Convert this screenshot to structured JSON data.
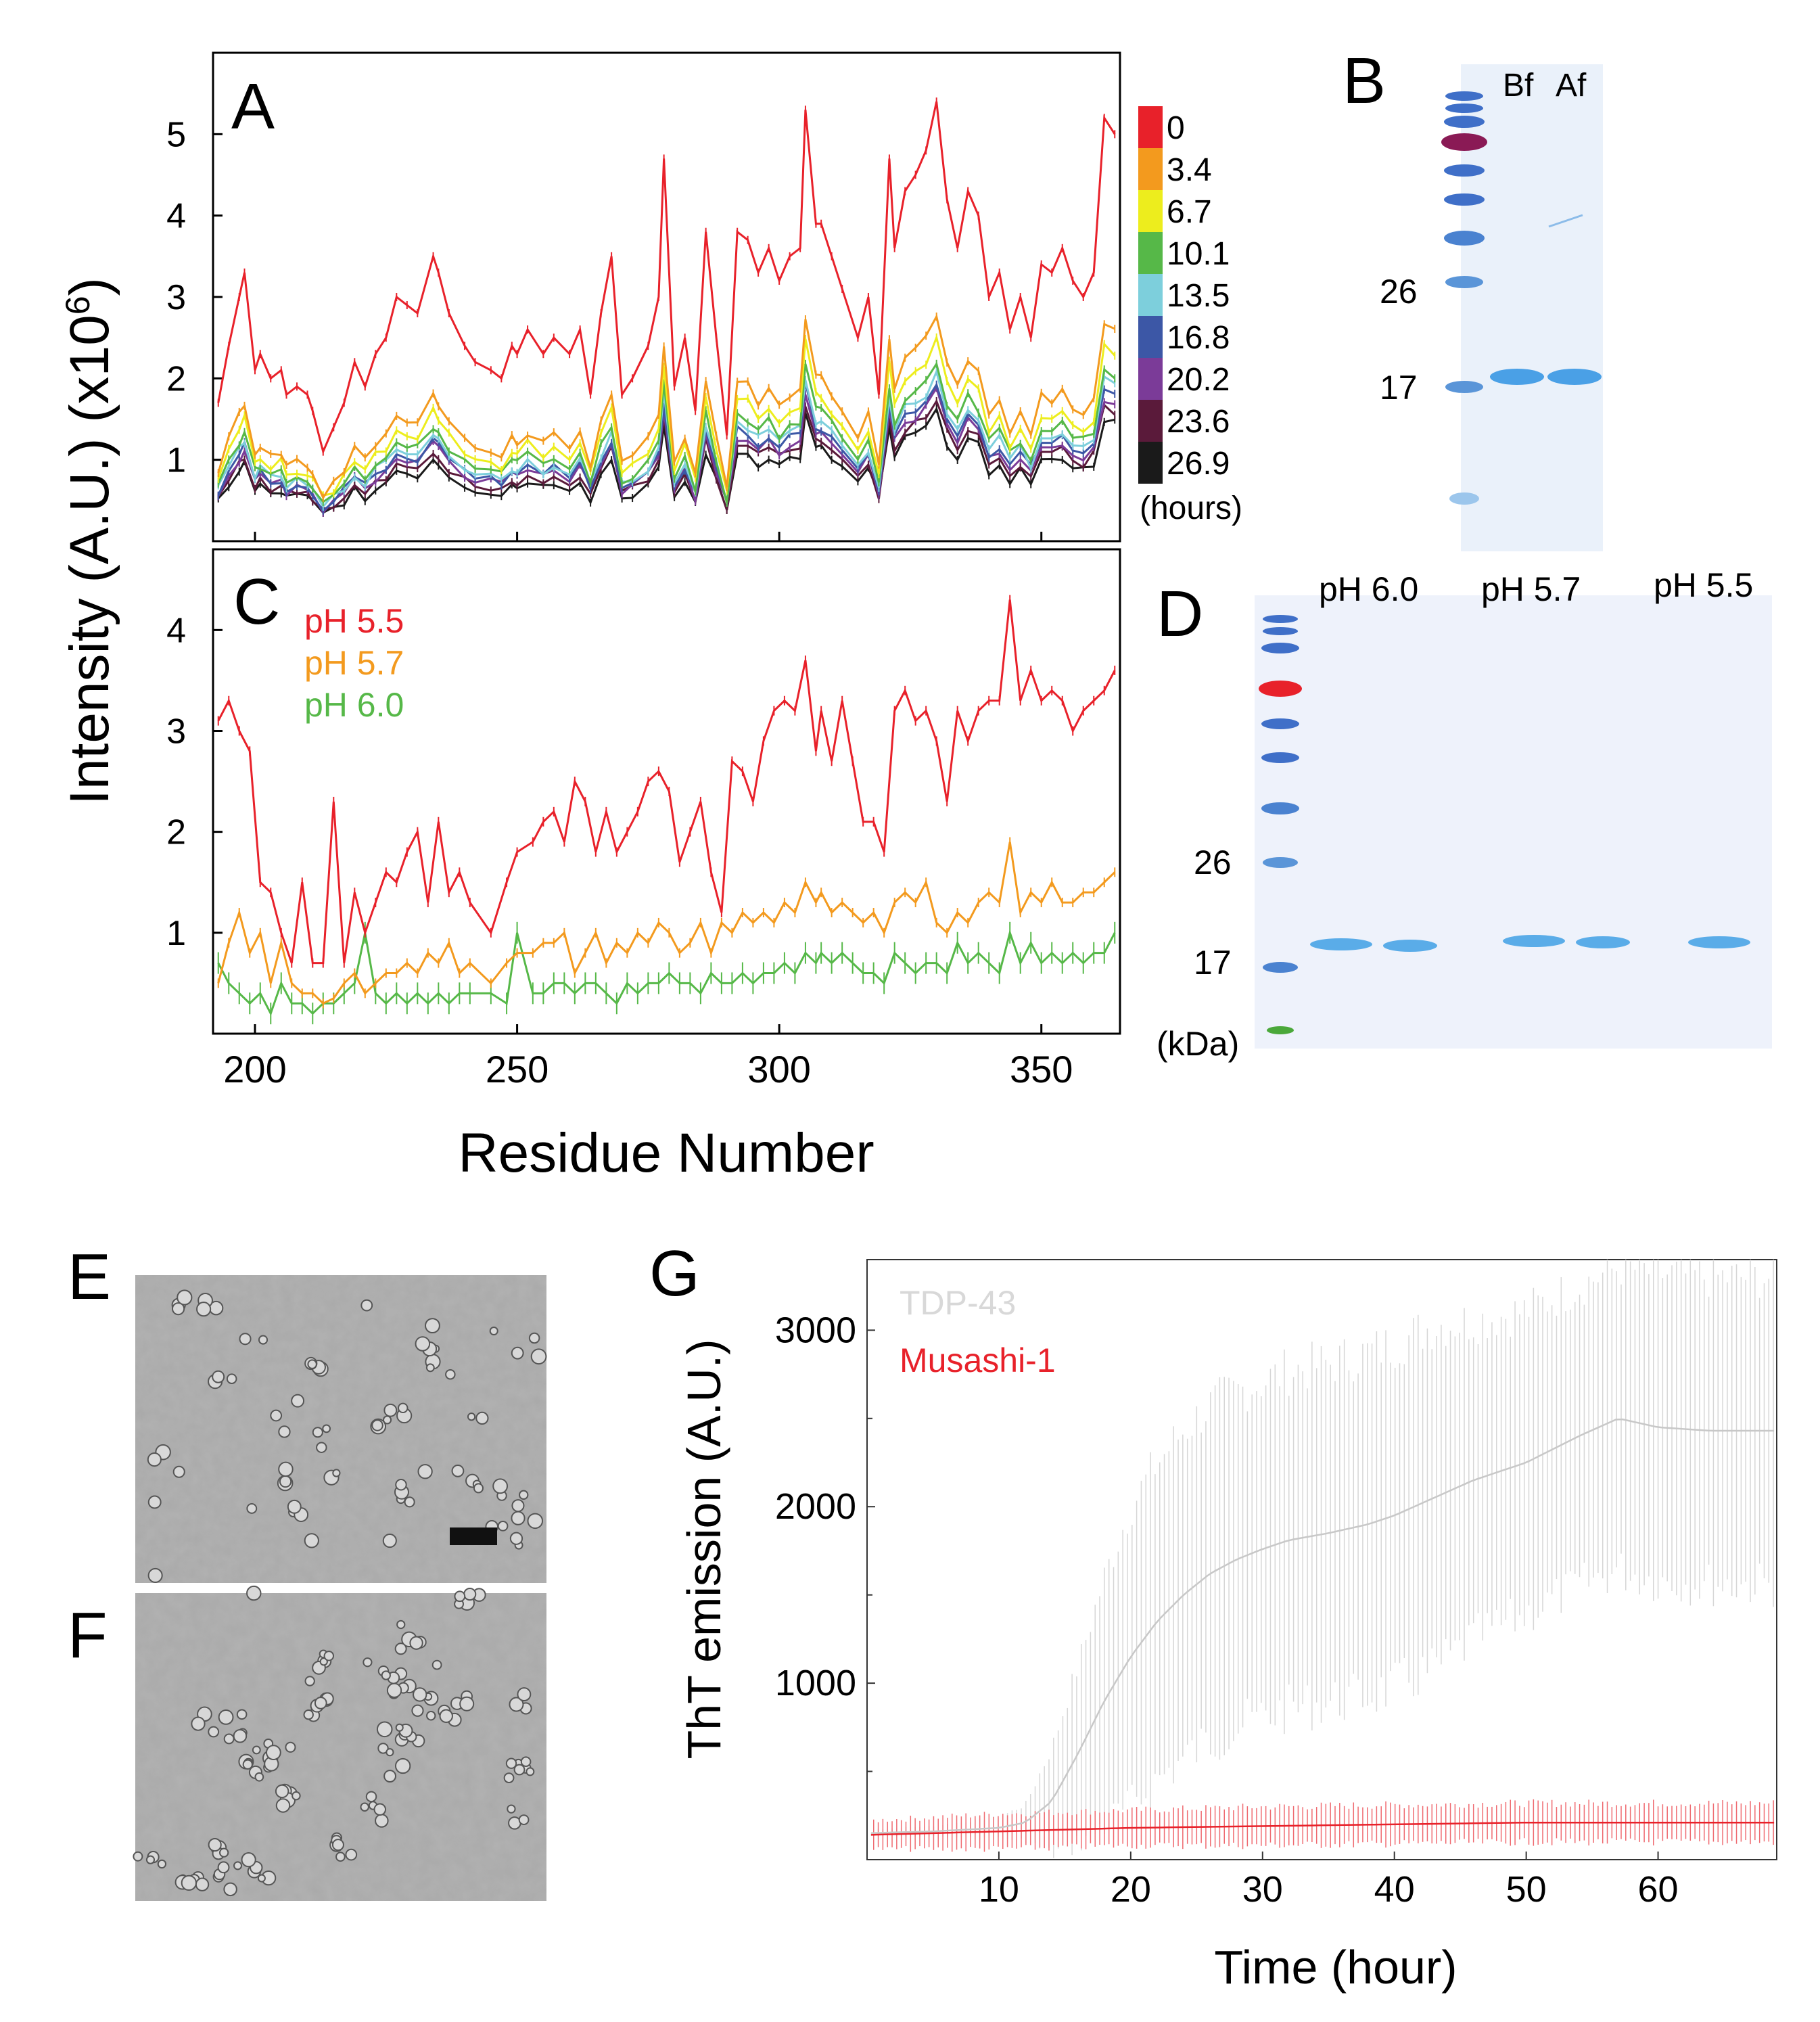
{
  "panel_labels": {
    "a": "A",
    "b": "B",
    "c": "C",
    "d": "D",
    "e": "E",
    "f": "F",
    "g": "G"
  },
  "colors": {
    "legend": [
      "#e8212a",
      "#f39a1e",
      "#eded1d",
      "#56b848",
      "#7dcfdc",
      "#3c57a6",
      "#7b3b98",
      "#5a1a3a",
      "#1a1a1a"
    ],
    "ph55": "#e8212a",
    "ph57": "#f39a1e",
    "ph60": "#56b848",
    "tdp43": "#c8c8c8",
    "musashi": "#e8212a",
    "gel_bg": "#eaf1fa",
    "band": "#4aa0e6"
  },
  "chart_data": [
    {
      "id": "A",
      "type": "line",
      "title": "",
      "ylabel_main": "Intensity (A.U.) (x10",
      "ylabel_sup": "6",
      "ylabel_end": ")",
      "xlim": [
        192,
        365
      ],
      "ylim": [
        0,
        6
      ],
      "yticks": [
        1,
        2,
        3,
        4,
        5
      ],
      "xticks": [
        200,
        250,
        300,
        350
      ],
      "legend": {
        "labels": [
          "0",
          "3.4",
          "6.7",
          "10.1",
          "13.5",
          "16.8",
          "20.2",
          "23.6",
          "26.9"
        ],
        "unit": "(hours)"
      },
      "series": [
        {
          "name": "0",
          "scale": 1.0
        },
        {
          "name": "3.4",
          "scale": 0.52
        },
        {
          "name": "6.7",
          "scale": 0.46
        },
        {
          "name": "10.1",
          "scale": 0.41
        },
        {
          "name": "13.5",
          "scale": 0.38
        },
        {
          "name": "16.8",
          "scale": 0.36
        },
        {
          "name": "20.2",
          "scale": 0.34
        },
        {
          "name": "23.6",
          "scale": 0.32
        },
        {
          "name": "26.9",
          "scale": 0.29
        }
      ],
      "x": [
        193,
        195,
        197,
        198,
        200,
        201,
        203,
        205,
        206,
        208,
        210,
        211,
        213,
        215,
        217,
        219,
        221,
        223,
        225,
        227,
        229,
        231,
        234,
        235,
        237,
        240,
        242,
        245,
        247,
        249,
        250,
        252,
        255,
        257,
        260,
        262,
        264,
        266,
        268,
        270,
        272,
        275,
        277,
        278,
        280,
        282,
        284,
        286,
        288,
        290,
        292,
        294,
        296,
        298,
        300,
        302,
        304,
        305,
        307,
        308,
        310,
        312,
        315,
        317,
        319,
        321,
        322,
        324,
        326,
        328,
        330,
        332,
        334,
        336,
        338,
        340,
        342,
        344,
        346,
        348,
        350,
        352,
        354,
        356,
        358,
        360,
        362,
        364
      ],
      "y": [
        1.7,
        2.4,
        3.0,
        3.3,
        2.1,
        2.3,
        2.0,
        2.1,
        1.8,
        1.9,
        1.8,
        1.6,
        1.1,
        1.4,
        1.7,
        2.2,
        1.9,
        2.3,
        2.5,
        3.0,
        2.9,
        2.8,
        3.5,
        3.3,
        2.8,
        2.4,
        2.2,
        2.1,
        2.0,
        2.4,
        2.3,
        2.6,
        2.3,
        2.5,
        2.3,
        2.6,
        1.8,
        2.8,
        3.5,
        1.8,
        2.0,
        2.4,
        3.0,
        4.7,
        1.9,
        2.5,
        1.6,
        3.8,
        2.5,
        1.3,
        3.8,
        3.7,
        3.3,
        3.6,
        3.2,
        3.5,
        3.6,
        5.3,
        3.9,
        3.9,
        3.5,
        3.1,
        2.5,
        3.0,
        1.8,
        4.7,
        3.6,
        4.3,
        4.5,
        4.8,
        5.4,
        4.2,
        3.6,
        4.3,
        4.0,
        3.0,
        3.3,
        2.6,
        3.0,
        2.5,
        3.4,
        3.3,
        3.6,
        3.2,
        3.0,
        3.3,
        5.2,
        5.0
      ]
    },
    {
      "id": "C",
      "type": "line",
      "xlim": [
        192,
        365
      ],
      "ylim": [
        0,
        4.8
      ],
      "yticks": [
        1,
        2,
        3,
        4
      ],
      "xticks": [
        200,
        250,
        300,
        350
      ],
      "xlabel": "Residue Number",
      "xticklabels": [
        "200",
        "250",
        "300",
        "350"
      ],
      "legend_labels": [
        "pH 5.5",
        "pH 5.7",
        "pH 6.0"
      ],
      "x": [
        193,
        195,
        197,
        199,
        201,
        203,
        205,
        207,
        209,
        211,
        213,
        215,
        217,
        219,
        221,
        223,
        225,
        227,
        229,
        231,
        233,
        235,
        237,
        239,
        241,
        245,
        248,
        250,
        253,
        255,
        257,
        259,
        261,
        263,
        265,
        267,
        269,
        271,
        273,
        275,
        277,
        279,
        281,
        283,
        285,
        287,
        289,
        291,
        293,
        295,
        297,
        299,
        301,
        303,
        305,
        307,
        308,
        310,
        312,
        314,
        316,
        318,
        320,
        322,
        324,
        326,
        328,
        330,
        332,
        334,
        336,
        338,
        340,
        342,
        344,
        346,
        348,
        350,
        352,
        354,
        356,
        358,
        360,
        362,
        364
      ],
      "series": [
        {
          "name": "pH 5.5",
          "values": [
            3.1,
            3.3,
            3.0,
            2.8,
            1.5,
            1.4,
            1.0,
            0.7,
            1.5,
            0.7,
            0.7,
            2.3,
            0.7,
            1.4,
            1.0,
            1.3,
            1.6,
            1.5,
            1.8,
            2.0,
            1.3,
            2.1,
            1.4,
            1.6,
            1.3,
            1.0,
            1.5,
            1.8,
            1.9,
            2.1,
            2.2,
            1.9,
            2.5,
            2.3,
            1.8,
            2.2,
            1.8,
            2.0,
            2.2,
            2.5,
            2.6,
            2.4,
            1.7,
            2.0,
            2.3,
            1.6,
            1.2,
            2.7,
            2.6,
            2.3,
            2.9,
            3.2,
            3.3,
            3.2,
            3.7,
            2.8,
            3.2,
            2.7,
            3.3,
            2.7,
            2.1,
            2.1,
            1.8,
            3.2,
            3.4,
            3.1,
            3.2,
            2.9,
            2.3,
            3.2,
            2.9,
            3.2,
            3.3,
            3.3,
            4.3,
            3.3,
            3.6,
            3.3,
            3.4,
            3.3,
            3.0,
            3.2,
            3.3,
            3.4,
            3.6
          ]
        },
        {
          "name": "pH 5.7",
          "values": [
            0.5,
            0.9,
            1.2,
            0.8,
            1.0,
            0.5,
            0.9,
            0.5,
            0.4,
            0.4,
            0.3,
            0.35,
            0.5,
            0.6,
            0.4,
            0.5,
            0.6,
            0.6,
            0.7,
            0.6,
            0.8,
            0.7,
            0.9,
            0.6,
            0.7,
            0.5,
            0.7,
            0.8,
            0.8,
            0.9,
            0.9,
            1.0,
            0.6,
            0.8,
            1.0,
            0.7,
            0.9,
            0.8,
            1.0,
            0.9,
            1.1,
            1.0,
            0.8,
            0.9,
            1.1,
            0.8,
            1.1,
            1.0,
            1.2,
            1.1,
            1.2,
            1.1,
            1.3,
            1.2,
            1.5,
            1.3,
            1.4,
            1.2,
            1.3,
            1.2,
            1.1,
            1.2,
            1.0,
            1.3,
            1.4,
            1.3,
            1.5,
            1.1,
            1.0,
            1.2,
            1.1,
            1.3,
            1.4,
            1.3,
            1.9,
            1.2,
            1.4,
            1.3,
            1.5,
            1.3,
            1.3,
            1.4,
            1.4,
            1.5,
            1.6
          ]
        },
        {
          "name": "pH 6.0",
          "values": [
            0.7,
            0.5,
            0.4,
            0.3,
            0.4,
            0.2,
            0.5,
            0.3,
            0.3,
            0.2,
            0.3,
            0.3,
            0.4,
            0.5,
            1.0,
            0.4,
            0.3,
            0.4,
            0.3,
            0.4,
            0.3,
            0.4,
            0.3,
            0.4,
            0.4,
            0.4,
            0.3,
            1.0,
            0.4,
            0.4,
            0.5,
            0.5,
            0.4,
            0.5,
            0.5,
            0.4,
            0.3,
            0.5,
            0.4,
            0.5,
            0.5,
            0.6,
            0.5,
            0.5,
            0.4,
            0.6,
            0.5,
            0.5,
            0.6,
            0.5,
            0.6,
            0.6,
            0.7,
            0.6,
            0.8,
            0.7,
            0.8,
            0.7,
            0.8,
            0.7,
            0.6,
            0.6,
            0.5,
            0.8,
            0.7,
            0.6,
            0.7,
            0.7,
            0.6,
            0.9,
            0.7,
            0.8,
            0.7,
            0.6,
            1.0,
            0.7,
            0.9,
            0.7,
            0.8,
            0.7,
            0.8,
            0.7,
            0.8,
            0.8,
            1.0
          ]
        }
      ]
    },
    {
      "id": "G",
      "type": "line",
      "xlabel": "Time (hour)",
      "ylabel": "ThT emission (A.U.)",
      "xlim": [
        0,
        69
      ],
      "ylim": [
        0,
        3400
      ],
      "xticks": [
        10,
        20,
        30,
        40,
        50,
        60
      ],
      "yticks": [
        1000,
        2000,
        3000
      ],
      "legend_labels": [
        "TDP-43",
        "Musashi-1"
      ],
      "series": [
        {
          "name": "TDP-43",
          "t": [
            0,
            5,
            10,
            12,
            14,
            16,
            18,
            20,
            22,
            24,
            26,
            28,
            30,
            32,
            35,
            38,
            40,
            43,
            46,
            50,
            54,
            57,
            60,
            64,
            69
          ],
          "values": [
            150,
            160,
            180,
            210,
            330,
            600,
            900,
            1150,
            1350,
            1500,
            1620,
            1700,
            1760,
            1810,
            1850,
            1900,
            1950,
            2050,
            2150,
            2250,
            2400,
            2500,
            2450,
            2430,
            2430
          ],
          "err": [
            20,
            30,
            60,
            100,
            300,
            500,
            700,
            850,
            900,
            930,
            950,
            950,
            950,
            960,
            960,
            970,
            970,
            980,
            900,
            860,
            850,
            860,
            870,
            870,
            870
          ]
        },
        {
          "name": "Musashi-1",
          "t": [
            0,
            10,
            20,
            30,
            40,
            50,
            60,
            69
          ],
          "values": [
            140,
            160,
            180,
            190,
            200,
            210,
            210,
            210
          ],
          "err": [
            80,
            100,
            100,
            110,
            110,
            110,
            110,
            110
          ]
        }
      ]
    }
  ],
  "gel_b": {
    "lane_labels": [
      "Bf",
      "Af"
    ],
    "markers": [
      "26",
      "17"
    ]
  },
  "gel_d": {
    "lane_labels": [
      "pH 6.0",
      "pH 5.7",
      "pH 5.5"
    ],
    "markers": [
      "26",
      "17"
    ],
    "unit": "(kDa)"
  },
  "scale_bar_label": ""
}
